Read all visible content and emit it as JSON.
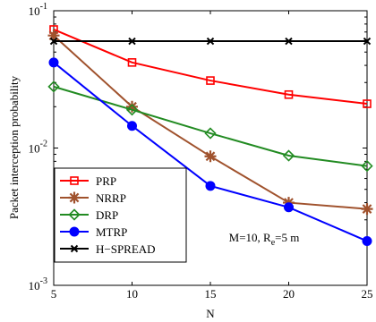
{
  "chart_data": {
    "type": "line",
    "title": "",
    "xlabel": "N",
    "ylabel": "Packet interception probability",
    "x": [
      5,
      10,
      15,
      20,
      25
    ],
    "xlim": [
      5,
      25
    ],
    "ylim": [
      0.001,
      0.1
    ],
    "yscale": "log",
    "x_ticks": [
      "5",
      "10",
      "15",
      "20",
      "25"
    ],
    "y_ticks": [
      {
        "value": 0.1,
        "base": "10",
        "exp": "-1"
      },
      {
        "value": 0.01,
        "base": "10",
        "exp": "-2"
      },
      {
        "value": 0.001,
        "base": "10",
        "exp": "-3"
      }
    ],
    "legend_position": "bottom-left",
    "grid": false,
    "series": [
      {
        "name": "PRP",
        "color": "#ff0000",
        "marker": "square",
        "values": [
          0.073,
          0.042,
          0.031,
          0.0245,
          0.021
        ]
      },
      {
        "name": "NRRP",
        "color": "#a0522d",
        "marker": "asterisk",
        "values": [
          0.066,
          0.02,
          0.0087,
          0.004,
          0.0036
        ]
      },
      {
        "name": "DRP",
        "color": "#228b22",
        "marker": "diamond",
        "values": [
          0.028,
          0.019,
          0.0128,
          0.0088,
          0.0074
        ]
      },
      {
        "name": "MTRP",
        "color": "#0000ff",
        "marker": "circle",
        "values": [
          0.042,
          0.0145,
          0.0053,
          0.0037,
          0.0021
        ]
      },
      {
        "name": "H−SPREAD",
        "color": "#000000",
        "marker": "x",
        "values": [
          0.06,
          0.06,
          0.06,
          0.06,
          0.06
        ]
      }
    ],
    "annotation": {
      "prefix": "M=10, R",
      "sub": "e",
      "suffix": "=5 m"
    }
  }
}
